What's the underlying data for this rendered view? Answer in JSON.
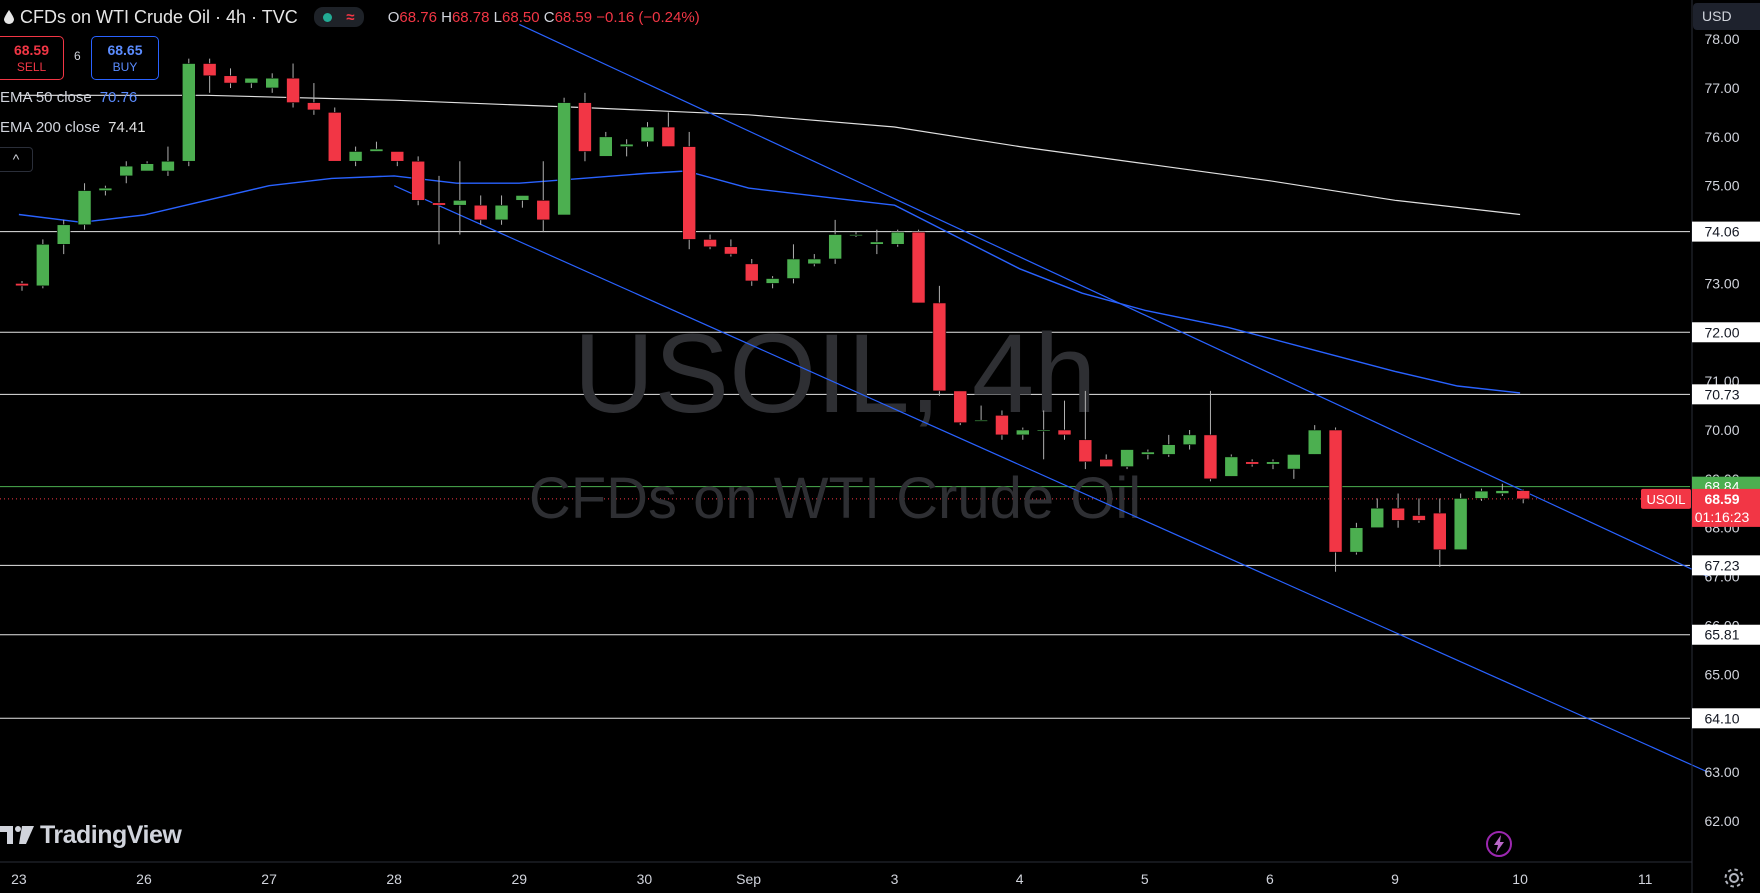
{
  "header": {
    "title": "CFDs on WTI Crude Oil · 4h · TVC",
    "ohlc": {
      "o_label": "O",
      "o": "68.76",
      "h_label": "H",
      "h": "68.78",
      "l_label": "L",
      "l": "68.50",
      "c_label": "C",
      "c": "68.59",
      "change": "−0.16 (−0.24%)"
    }
  },
  "trade": {
    "sell_price": "68.59",
    "sell_label": "SELL",
    "spread": "6",
    "buy_price": "68.65",
    "buy_label": "BUY"
  },
  "indicators": [
    {
      "label": "EMA 50 close",
      "value": "70.76",
      "color": "#2962ff"
    },
    {
      "label": "EMA 200 close",
      "value": "74.41",
      "color": "#e0e0e0"
    }
  ],
  "collapse_label": "^",
  "currency": "USD",
  "logo_text": "TradingView",
  "icons": [
    "drop-icon",
    "status-dot-icon",
    "wave-icon",
    "chevron-up-icon",
    "tradingview-logo-icon",
    "lightning-icon",
    "gear-icon"
  ],
  "colors": {
    "up": "#4caf50",
    "down": "#f23645",
    "ema50": "#2962ff",
    "ema200": "#e0e0e0",
    "channel": "#2962ff",
    "level": "#e6e6e6",
    "last_price": "#f23645",
    "green_level": "#4caf50"
  },
  "chart_data": {
    "type": "candlestick",
    "symbol": "USOIL",
    "timeframe": "4h",
    "watermark": {
      "line1": "USOIL, 4h",
      "line2": "CFDs on WTI Crude Oil"
    },
    "ylim": [
      61.2,
      78.8
    ],
    "y_ticks": [
      "62.00",
      "63.00",
      "64.00",
      "65.00",
      "66.00",
      "67.00",
      "68.00",
      "69.00",
      "70.00",
      "71.00",
      "72.00",
      "73.00",
      "74.00",
      "75.00",
      "76.00",
      "77.00",
      "78.00"
    ],
    "x_ticks": [
      {
        "label": "23",
        "i": -0.15
      },
      {
        "label": "26",
        "i": 5.85
      },
      {
        "label": "27",
        "i": 11.85
      },
      {
        "label": "28",
        "i": 17.85
      },
      {
        "label": "29",
        "i": 23.85
      },
      {
        "label": "30",
        "i": 29.85
      },
      {
        "label": "Sep",
        "i": 34.85
      },
      {
        "label": "3",
        "i": 41.85
      },
      {
        "label": "4",
        "i": 47.85
      },
      {
        "label": "5",
        "i": 53.85
      },
      {
        "label": "6",
        "i": 59.85
      },
      {
        "label": "9",
        "i": 65.85
      },
      {
        "label": "10",
        "i": 71.85
      },
      {
        "label": "11",
        "i": 77.85
      }
    ],
    "candles": [
      [
        73.0,
        73.05,
        72.85,
        72.95
      ],
      [
        72.95,
        73.9,
        72.9,
        73.8
      ],
      [
        73.8,
        74.3,
        73.6,
        74.2
      ],
      [
        74.2,
        75.05,
        74.1,
        74.9
      ],
      [
        74.9,
        75.0,
        74.8,
        74.95
      ],
      [
        75.2,
        75.5,
        75.05,
        75.4
      ],
      [
        75.3,
        75.5,
        75.3,
        75.45
      ],
      [
        75.3,
        75.8,
        75.2,
        75.5
      ],
      [
        75.5,
        77.6,
        75.4,
        77.5
      ],
      [
        77.5,
        77.6,
        76.9,
        77.25
      ],
      [
        77.25,
        77.4,
        77.0,
        77.1
      ],
      [
        77.1,
        77.2,
        77.0,
        77.2
      ],
      [
        77.0,
        77.3,
        76.9,
        77.2
      ],
      [
        77.2,
        77.5,
        76.6,
        76.7
      ],
      [
        76.7,
        77.1,
        76.45,
        76.55
      ],
      [
        76.5,
        76.6,
        75.5,
        75.5
      ],
      [
        75.5,
        75.8,
        75.4,
        75.7
      ],
      [
        75.7,
        75.9,
        75.7,
        75.75
      ],
      [
        75.7,
        75.7,
        75.4,
        75.5
      ],
      [
        75.5,
        75.6,
        74.6,
        74.7
      ],
      [
        74.65,
        75.2,
        73.8,
        74.6
      ],
      [
        74.6,
        75.5,
        74.0,
        74.7
      ],
      [
        74.6,
        74.8,
        74.2,
        74.3
      ],
      [
        74.3,
        74.8,
        74.2,
        74.6
      ],
      [
        74.7,
        74.8,
        74.55,
        74.8
      ],
      [
        74.7,
        75.5,
        74.05,
        74.3
      ],
      [
        74.4,
        76.8,
        74.4,
        76.7
      ],
      [
        76.7,
        76.9,
        75.5,
        75.7
      ],
      [
        75.6,
        76.1,
        75.6,
        76.0
      ],
      [
        75.8,
        75.95,
        75.6,
        75.85
      ],
      [
        75.9,
        76.3,
        75.8,
        76.2
      ],
      [
        76.2,
        76.5,
        75.8,
        75.8
      ],
      [
        75.8,
        76.1,
        73.7,
        73.9
      ],
      [
        73.9,
        74.0,
        73.7,
        73.75
      ],
      [
        73.75,
        73.9,
        73.55,
        73.6
      ],
      [
        73.4,
        73.5,
        72.95,
        73.05
      ],
      [
        73.0,
        73.15,
        72.9,
        73.1
      ],
      [
        73.1,
        73.8,
        73.0,
        73.5
      ],
      [
        73.4,
        73.6,
        73.35,
        73.5
      ],
      [
        73.5,
        74.3,
        73.4,
        74.0
      ],
      [
        74.0,
        74.05,
        73.95,
        74.0
      ],
      [
        73.8,
        74.1,
        73.6,
        73.85
      ],
      [
        73.8,
        74.1,
        73.75,
        74.05
      ],
      [
        74.05,
        74.1,
        72.6,
        72.6
      ],
      [
        72.6,
        72.95,
        70.7,
        70.8
      ],
      [
        70.8,
        70.8,
        70.1,
        70.15
      ],
      [
        70.2,
        70.5,
        70.2,
        70.2
      ],
      [
        70.3,
        70.4,
        69.8,
        69.9
      ],
      [
        69.9,
        70.05,
        69.8,
        70.0
      ],
      [
        70.0,
        70.4,
        69.4,
        70.0
      ],
      [
        70.0,
        70.6,
        69.8,
        69.9
      ],
      [
        69.8,
        70.8,
        69.2,
        69.35
      ],
      [
        69.4,
        69.5,
        69.25,
        69.25
      ],
      [
        69.25,
        69.6,
        69.2,
        69.6
      ],
      [
        69.5,
        69.6,
        69.4,
        69.55
      ],
      [
        69.5,
        69.9,
        69.45,
        69.7
      ],
      [
        69.7,
        70.0,
        69.6,
        69.9
      ],
      [
        69.9,
        70.8,
        68.95,
        69.0
      ],
      [
        69.05,
        69.5,
        69.05,
        69.45
      ],
      [
        69.35,
        69.4,
        69.25,
        69.3
      ],
      [
        69.3,
        69.4,
        69.2,
        69.35
      ],
      [
        69.2,
        69.5,
        69.0,
        69.5
      ],
      [
        69.5,
        70.1,
        69.5,
        70.0
      ],
      [
        70.0,
        70.05,
        67.1,
        67.5
      ],
      [
        67.5,
        68.1,
        67.45,
        68.0
      ],
      [
        68.0,
        68.6,
        68.0,
        68.4
      ],
      [
        68.4,
        68.7,
        68.0,
        68.15
      ],
      [
        68.25,
        68.6,
        68.1,
        68.15
      ],
      [
        68.3,
        68.6,
        67.2,
        67.55
      ],
      [
        67.55,
        68.7,
        67.55,
        68.6
      ],
      [
        68.6,
        68.8,
        68.55,
        68.75
      ],
      [
        68.7,
        68.9,
        68.65,
        68.76
      ],
      [
        68.76,
        68.78,
        68.5,
        68.59
      ]
    ],
    "ema50": [
      [
        -0.15,
        74.41
      ],
      [
        2.85,
        74.25
      ],
      [
        5.85,
        74.4
      ],
      [
        11.85,
        75.0
      ],
      [
        14.85,
        75.15
      ],
      [
        17.85,
        75.2
      ],
      [
        20.85,
        75.05
      ],
      [
        23.85,
        75.05
      ],
      [
        26.85,
        75.15
      ],
      [
        29.85,
        75.25
      ],
      [
        31.85,
        75.3
      ],
      [
        34.85,
        74.95
      ],
      [
        38.85,
        74.75
      ],
      [
        41.85,
        74.6
      ],
      [
        44.85,
        73.95
      ],
      [
        47.85,
        73.3
      ],
      [
        50.85,
        72.8
      ],
      [
        53.85,
        72.45
      ],
      [
        57.85,
        72.1
      ],
      [
        61.85,
        71.65
      ],
      [
        65.85,
        71.2
      ],
      [
        68.85,
        70.9
      ],
      [
        71.85,
        70.76
      ]
    ],
    "ema200": [
      [
        -0.15,
        76.85
      ],
      [
        8.85,
        76.85
      ],
      [
        17.85,
        76.75
      ],
      [
        26.85,
        76.6
      ],
      [
        34.85,
        76.45
      ],
      [
        41.85,
        76.2
      ],
      [
        47.85,
        75.8
      ],
      [
        53.85,
        75.45
      ],
      [
        59.85,
        75.1
      ],
      [
        65.85,
        74.7
      ],
      [
        71.85,
        74.41
      ]
    ],
    "channel_upper": [
      [
        23.85,
        78.3
      ],
      [
        80.85,
        67.0
      ]
    ],
    "channel_lower": [
      [
        17.85,
        75.0
      ],
      [
        80.85,
        63.0
      ]
    ],
    "levels": [
      {
        "value": 74.06,
        "label": "74.06"
      },
      {
        "value": 72.0,
        "label": "72.00"
      },
      {
        "value": 70.73,
        "label": "70.73"
      },
      {
        "value": 67.23,
        "label": "67.23"
      },
      {
        "value": 65.81,
        "label": "65.81"
      },
      {
        "value": 64.1,
        "label": "64.10"
      }
    ],
    "green_level": {
      "value": 68.84,
      "label": "68.84"
    },
    "last_price": {
      "value": 68.59,
      "label": "68.59",
      "symbol": "USOIL",
      "countdown": "01:16:23"
    }
  }
}
